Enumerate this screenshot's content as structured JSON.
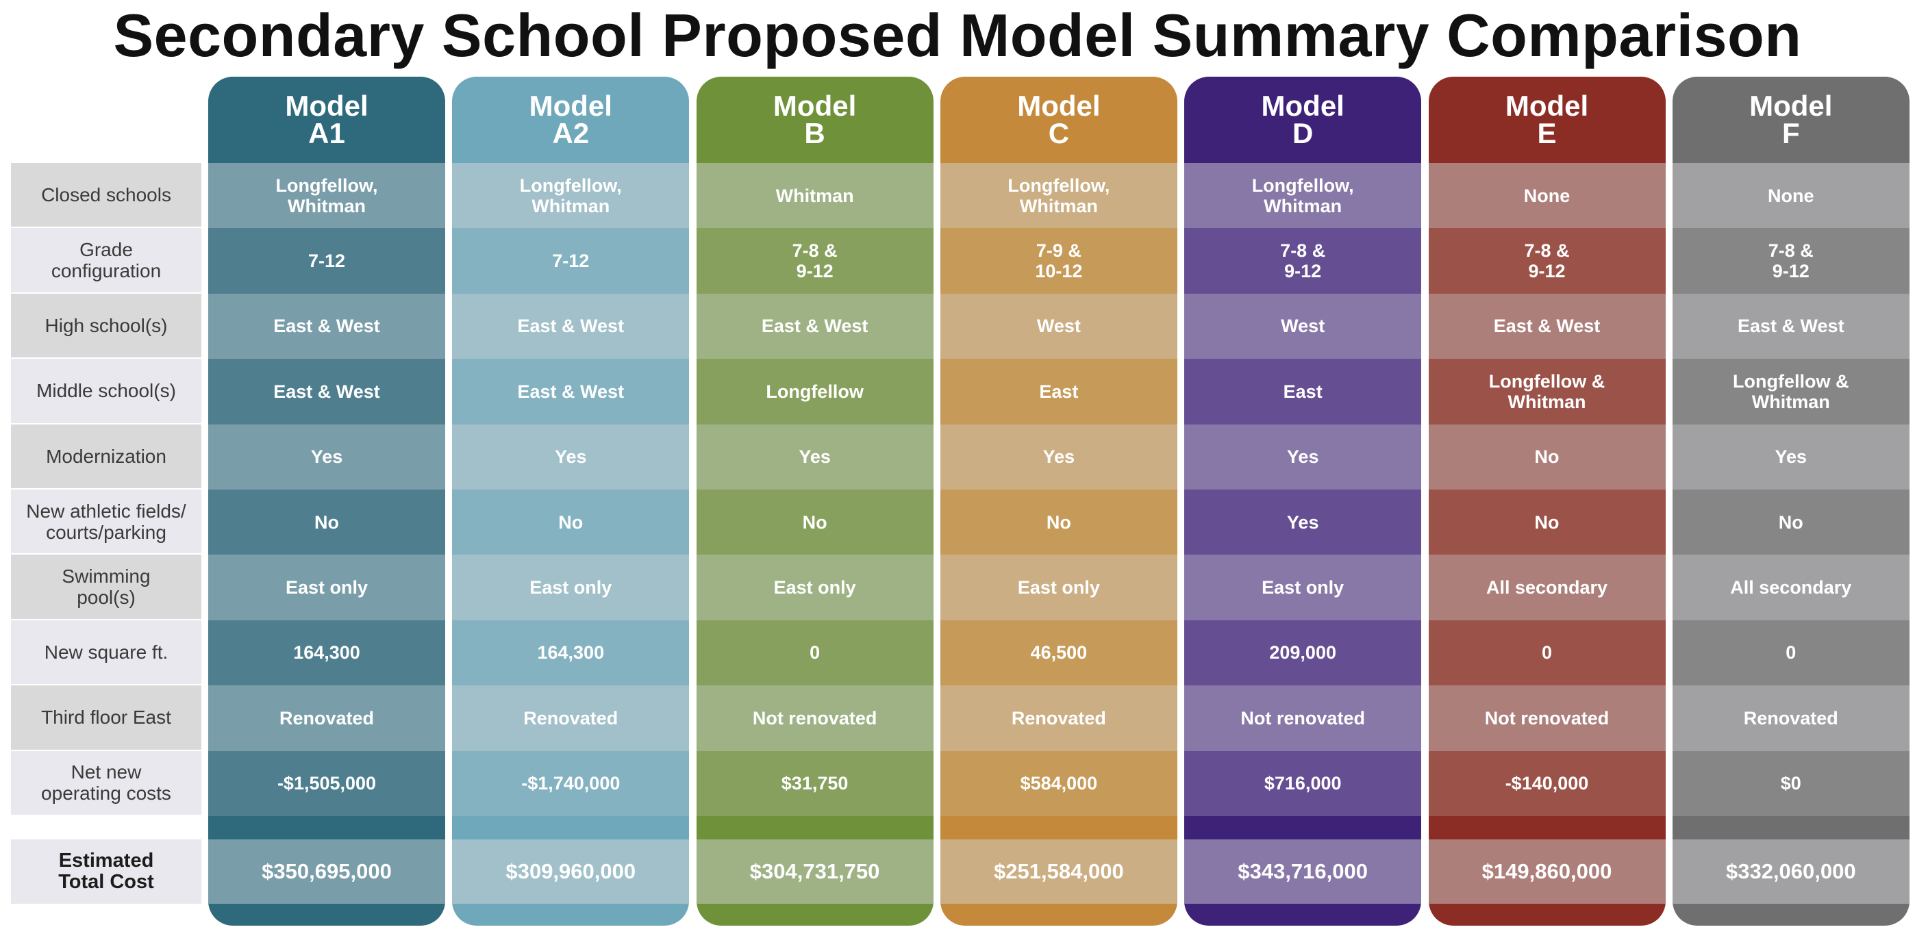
{
  "title": "Secondary School Proposed Model Summary Comparison",
  "row_labels": [
    "Closed schools",
    "Grade\nconfiguration",
    "High school(s)",
    "Middle school(s)",
    "Modernization",
    "New athletic fields/\ncourts/parking",
    "Swimming\npool(s)",
    "New square ft.",
    "Third floor East",
    "Net new\noperating costs"
  ],
  "total_label": "Estimated\nTotal Cost",
  "models": [
    {
      "name": "Model\nA1",
      "colors": {
        "head": "#2e6a7b",
        "dark": "#4f7f8e",
        "light": "#7a9ea9"
      },
      "cells": [
        "Longfellow,\nWhitman",
        "7-12",
        "East & West",
        "East & West",
        "Yes",
        "No",
        "East only",
        "164,300",
        "Renovated",
        "-$1,505,000"
      ],
      "total": "$350,695,000"
    },
    {
      "name": "Model\nA2",
      "colors": {
        "head": "#6ea8ba",
        "dark": "#84b2c1",
        "light": "#a1c0ca"
      },
      "cells": [
        "Longfellow,\nWhitman",
        "7-12",
        "East & West",
        "East & West",
        "Yes",
        "No",
        "East only",
        "164,300",
        "Renovated",
        "-$1,740,000"
      ],
      "total": "$309,960,000"
    },
    {
      "name": "Model\nB",
      "colors": {
        "head": "#6e913a",
        "dark": "#87a05d",
        "light": "#9fb286"
      },
      "cells": [
        "Whitman",
        "7-8 &\n9-12",
        "East & West",
        "Longfellow",
        "Yes",
        "No",
        "East only",
        "0",
        "Not renovated",
        "$31,750"
      ],
      "total": "$304,731,750"
    },
    {
      "name": "Model\nC",
      "colors": {
        "head": "#c4893a",
        "dark": "#c69a58",
        "light": "#cbae83"
      },
      "cells": [
        "Longfellow,\nWhitman",
        "7-9 &\n10-12",
        "West",
        "East",
        "Yes",
        "No",
        "East only",
        "46,500",
        "Renovated",
        "$584,000"
      ],
      "total": "$251,584,000"
    },
    {
      "name": "Model\nD",
      "colors": {
        "head": "#3e2277",
        "dark": "#654e91",
        "light": "#8878a7"
      },
      "cells": [
        "Longfellow,\nWhitman",
        "7-8 &\n9-12",
        "West",
        "East",
        "Yes",
        "Yes",
        "East only",
        "209,000",
        "Not renovated",
        "$716,000"
      ],
      "total": "$343,716,000"
    },
    {
      "name": "Model\nE",
      "colors": {
        "head": "#8c2d25",
        "dark": "#9b5249",
        "light": "#ad7f7b"
      },
      "cells": [
        "None",
        "7-8 &\n9-12",
        "East & West",
        "Longfellow &\nWhitman",
        "No",
        "No",
        "All secondary",
        "0",
        "Not renovated",
        "-$140,000"
      ],
      "total": "$149,860,000"
    },
    {
      "name": "Model\nF",
      "colors": {
        "head": "#6f6f6f",
        "dark": "#868686",
        "light": "#a1a1a3"
      },
      "cells": [
        "None",
        "7-8 &\n9-12",
        "East & West",
        "Longfellow &\nWhitman",
        "Yes",
        "No",
        "All secondary",
        "0",
        "Renovated",
        "$0"
      ],
      "total": "$332,060,000"
    }
  ]
}
